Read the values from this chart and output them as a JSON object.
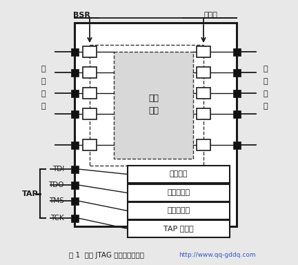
{
  "bg_color": "#e8e8e8",
  "text_color": "#1a1a1a",
  "line_color": "#1a1a1a",
  "dash_color": "#333333",
  "white": "#ffffff",
  "black": "#111111",
  "bsr_label": "BSR",
  "scan_chain_label": "扫描链",
  "core_label1": "芯片",
  "core_label2": "内核",
  "input_label": [
    "输",
    "入",
    "引",
    "脚"
  ],
  "output_label": [
    "输",
    "出",
    "引",
    "脚"
  ],
  "tap_label": "TAP",
  "tap_pins": [
    "TDI",
    "TDO",
    "TMS",
    "TCK"
  ],
  "reg_boxes": [
    "器件识别",
    "旁路寄存器",
    "指令寄存器",
    "TAP 控制器"
  ],
  "caption": "图 1  支持 JTAG 标准的芯片结构",
  "watermark": "http://www.qq-gddq.com"
}
